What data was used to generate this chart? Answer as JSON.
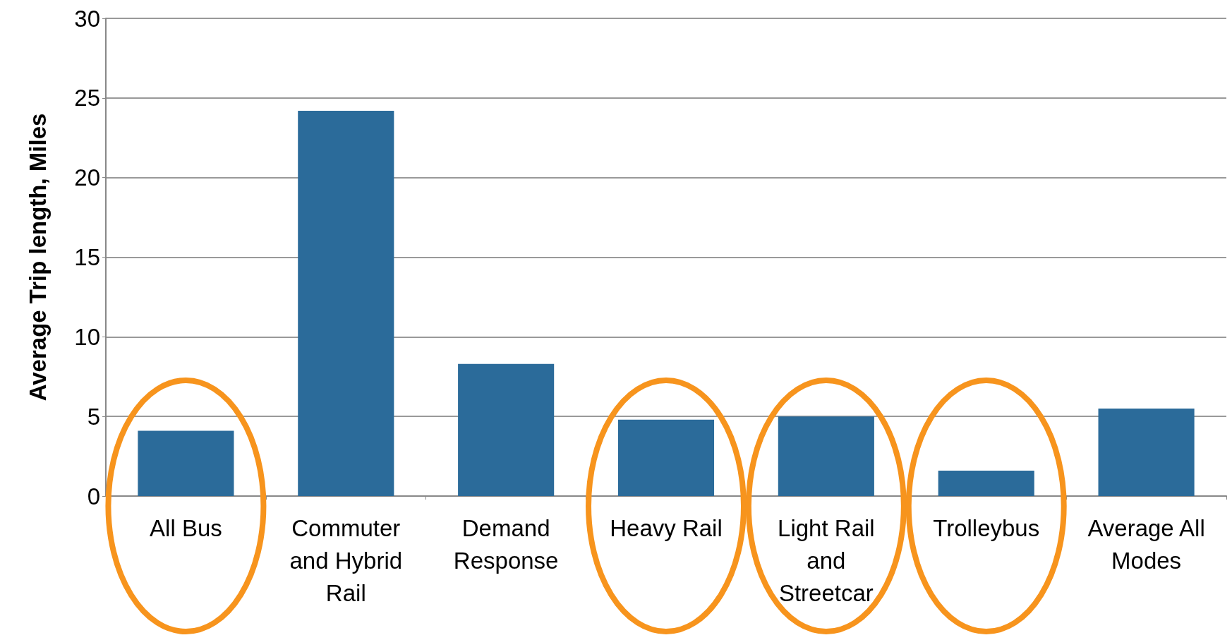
{
  "chart_data": {
    "type": "bar",
    "ylabel": "Average Trip length, Miles",
    "categories": [
      "All Bus",
      "Commuter and Hybrid Rail",
      "Demand Response",
      "Heavy Rail",
      "Light Rail and Streetcar",
      "Trolleybus",
      "Average All Modes"
    ],
    "values": [
      4.1,
      24.2,
      8.3,
      4.8,
      5.0,
      1.6,
      5.5
    ],
    "color": "#2b6b9a",
    "ylim": [
      0,
      30
    ],
    "yticks": [
      0,
      5,
      10,
      15,
      20,
      25,
      30
    ],
    "grid": "y"
  }
}
